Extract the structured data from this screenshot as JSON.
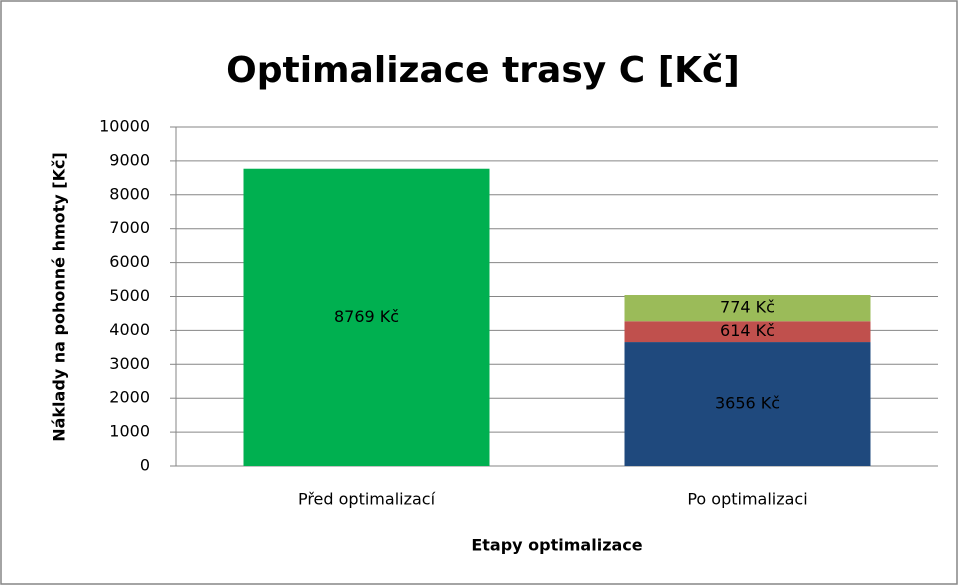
{
  "chart_data": {
    "type": "stacked_bar",
    "title": "Optimalizace trasy C [Kč]",
    "x_label": "Etapy optimalizace",
    "y_label": "Náklady na pohonné hmoty [Kč]",
    "categories": [
      "Před optimalizací",
      "Po optimalizaci"
    ],
    "series": [
      {
        "color": "#00b050",
        "values": [
          8769,
          null
        ],
        "value_labels": [
          "8769 Kč",
          null
        ]
      },
      {
        "color": "#1f497d",
        "values": [
          null,
          3656
        ],
        "value_labels": [
          null,
          "3656 Kč"
        ]
      },
      {
        "color": "#c0504d",
        "values": [
          null,
          614
        ],
        "value_labels": [
          null,
          "614 Kč"
        ]
      },
      {
        "color": "#9bbb59",
        "values": [
          null,
          774
        ],
        "value_labels": [
          null,
          "774 Kč"
        ]
      }
    ],
    "ylim": [
      0,
      10000
    ],
    "yticks": [
      0,
      1000,
      2000,
      3000,
      4000,
      5000,
      6000,
      7000,
      8000,
      9000,
      10000
    ],
    "grid": true
  }
}
